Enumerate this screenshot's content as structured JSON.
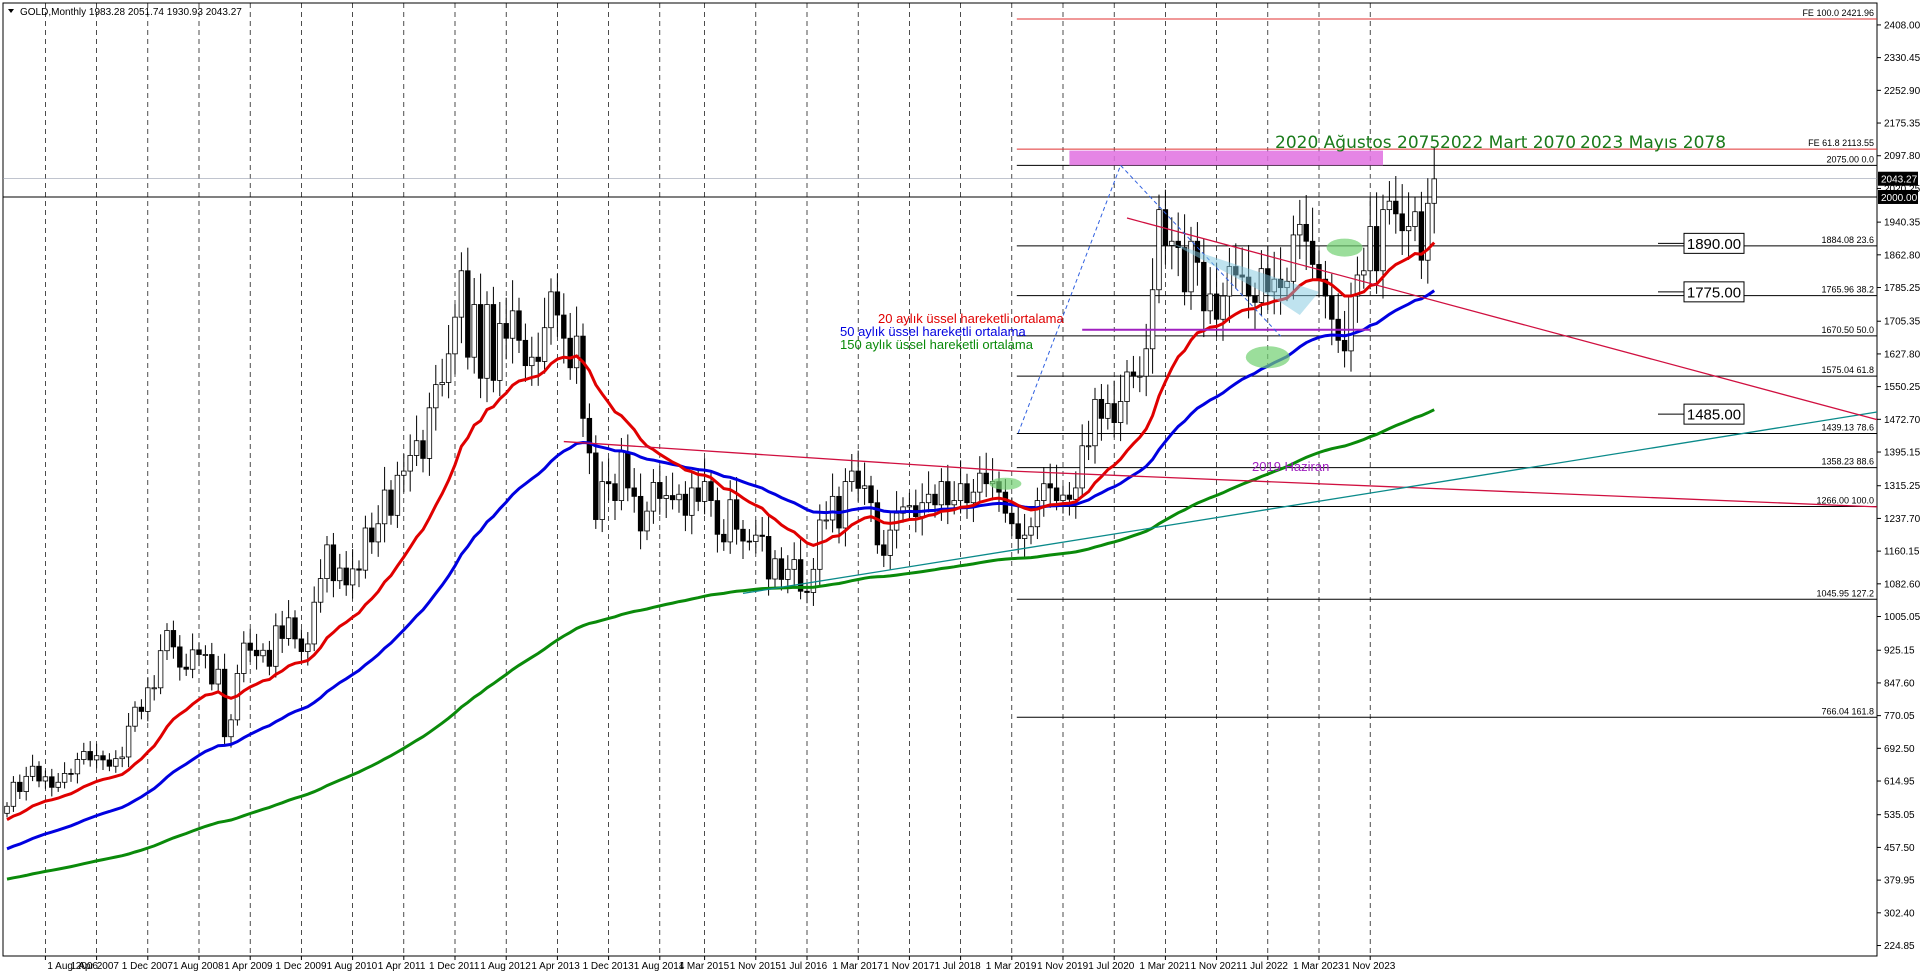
{
  "header": {
    "symbol": "GOLD,Monthly",
    "ohlc": "1983.28 2051.74 1930.93 2043.27"
  },
  "legend": [
    {
      "text": "20 aylık üssel hareketli ortalama",
      "color": "#e00000"
    },
    {
      "text": "50 aylık üssel hareketli ortalama",
      "color": "#0000e0"
    },
    {
      "text": "150 aylık üssel hareketli ortalama",
      "color": "#0a8a0a"
    }
  ],
  "annotations": {
    "peak_2020": "2020 Ağustos 2075",
    "peak_2022": "2022 Mart 2070",
    "peak_2023": "2023 Mayıs 2078",
    "june_2019": "2019 Haziran",
    "box_1890": "1890.00",
    "box_1775": "1775.00",
    "box_1485": "1485.00"
  },
  "fib_levels": [
    {
      "label": "FE 100.0 2421.96",
      "value": 2421.96,
      "color": "#e03030"
    },
    {
      "label": "FE 61.8 2113.55",
      "value": 2113.55,
      "color": "#e03030"
    },
    {
      "label": "2075.00 0.0",
      "value": 2075.0,
      "color": "#000"
    },
    {
      "label": "1884.08 23.6",
      "value": 1884.08,
      "color": "#000"
    },
    {
      "label": "1765.96 38.2",
      "value": 1765.96,
      "color": "#000"
    },
    {
      "label": "1670.50 50.0",
      "value": 1670.5,
      "color": "#000"
    },
    {
      "label": "1575.04 61.8",
      "value": 1575.04,
      "color": "#000"
    },
    {
      "label": "1439.13 78.6",
      "value": 1439.13,
      "color": "#000"
    },
    {
      "label": "1358.23 88.6",
      "value": 1358.23,
      "color": "#000"
    },
    {
      "label": "1266.00 100.0",
      "value": 1266.0,
      "color": "#000"
    },
    {
      "label": "1045.95 127.2",
      "value": 1045.95,
      "color": "#000"
    },
    {
      "label": "766.04 161.8",
      "value": 766.04,
      "color": "#000"
    }
  ],
  "price_tags": {
    "current": "2043.27",
    "line_2000": "2000.00"
  },
  "chart_data": {
    "type": "candlestick",
    "instrument": "GOLD",
    "timeframe": "Monthly",
    "yticks": [
      "2408.00",
      "2330.45",
      "2252.90",
      "2175.35",
      "2097.80",
      "2020.25",
      "1940.35",
      "1862.80",
      "1785.25",
      "1705.35",
      "1627.80",
      "1550.25",
      "1472.70",
      "1395.15",
      "1315.25",
      "1237.70",
      "1160.15",
      "1082.60",
      "1005.05",
      "925.15",
      "847.60",
      "770.05",
      "692.50",
      "614.95",
      "535.05",
      "457.50",
      "379.95",
      "302.40",
      "224.85"
    ],
    "xticks": [
      "1 Aug 2006",
      "1 Apr 2007",
      "1 Dec 2007",
      "1 Aug 2008",
      "1 Apr 2009",
      "1 Dec 2009",
      "1 Aug 2010",
      "1 Apr 2011",
      "1 Dec 2011",
      "1 Aug 2012",
      "1 Apr 2013",
      "1 Dec 2013",
      "1 Aug 2014",
      "1 Mar 2015",
      "1 Nov 2015",
      "1 Jul 2016",
      "1 Mar 2017",
      "1 Nov 2017",
      "1 Jul 2018",
      "1 Mar 2019",
      "1 Nov 2019",
      "1 Jul 2020",
      "1 Mar 2021",
      "1 Nov 2021",
      "1 Jul 2022",
      "1 Mar 2023",
      "1 Nov 2023"
    ],
    "ylim": [
      200,
      2460
    ],
    "start": "2006-02",
    "closes": [
      555,
      612,
      590,
      626,
      650,
      615,
      625,
      600,
      612,
      633,
      632,
      666,
      685,
      665,
      675,
      665,
      650,
      668,
      672,
      745,
      790,
      780,
      836,
      836,
      924,
      972,
      933,
      885,
      880,
      926,
      915,
      915,
      845,
      880,
      720,
      760,
      870,
      942,
      925,
      912,
      925,
      887,
      983,
      953,
      1002,
      952,
      922,
      940,
      1039,
      1095,
      1175,
      1090,
      1120,
      1080,
      1118,
      1115,
      1215,
      1182,
      1225,
      1305,
      1245,
      1340,
      1350,
      1387,
      1422,
      1380,
      1500,
      1555,
      1560,
      1628,
      1715,
      1825,
      1620,
      1745,
      1570,
      1745,
      1565,
      1700,
      1665,
      1730,
      1660,
      1600,
      1620,
      1610,
      1690,
      1775,
      1720,
      1665,
      1595,
      1670,
      1475,
      1393,
      1235,
      1325,
      1320,
      1280,
      1395,
      1310,
      1290,
      1208,
      1255,
      1323,
      1285,
      1292,
      1282,
      1295,
      1245,
      1310,
      1278,
      1325,
      1280,
      1200,
      1182,
      1282,
      1212,
      1184,
      1183,
      1198,
      1195,
      1094,
      1142,
      1093,
      1117,
      1140,
      1065,
      1062,
      1117,
      1234,
      1234,
      1290,
      1215,
      1325,
      1350,
      1309,
      1315,
      1275,
      1175,
      1150,
      1210,
      1250,
      1265,
      1268,
      1242,
      1275,
      1295,
      1270,
      1325,
      1270,
      1280,
      1320,
      1275,
      1300,
      1345,
      1320,
      1325,
      1300,
      1250,
      1225,
      1190,
      1198,
      1218,
      1280,
      1320,
      1310,
      1280,
      1293,
      1283,
      1310,
      1410,
      1410,
      1520,
      1475,
      1510,
      1465,
      1515,
      1585,
      1575,
      1575,
      1640,
      1780,
      1970,
      1885,
      1895,
      1880,
      1775,
      1895,
      1845,
      1730,
      1770,
      1710,
      1765,
      1835,
      1815,
      1810,
      1765,
      1750,
      1830,
      1775,
      1805,
      1785,
      1800,
      1910,
      1935,
      1895,
      1840,
      1805,
      1765,
      1710,
      1660,
      1635,
      1765,
      1815,
      1825,
      1930,
      1825,
      1970,
      1990,
      1960,
      1920,
      1930,
      1965,
      1850,
      1985,
      2043
    ],
    "ema20_endpoint": 1890.0,
    "ema50_endpoint": 1775.0,
    "ema150_endpoint": 1485.0
  }
}
